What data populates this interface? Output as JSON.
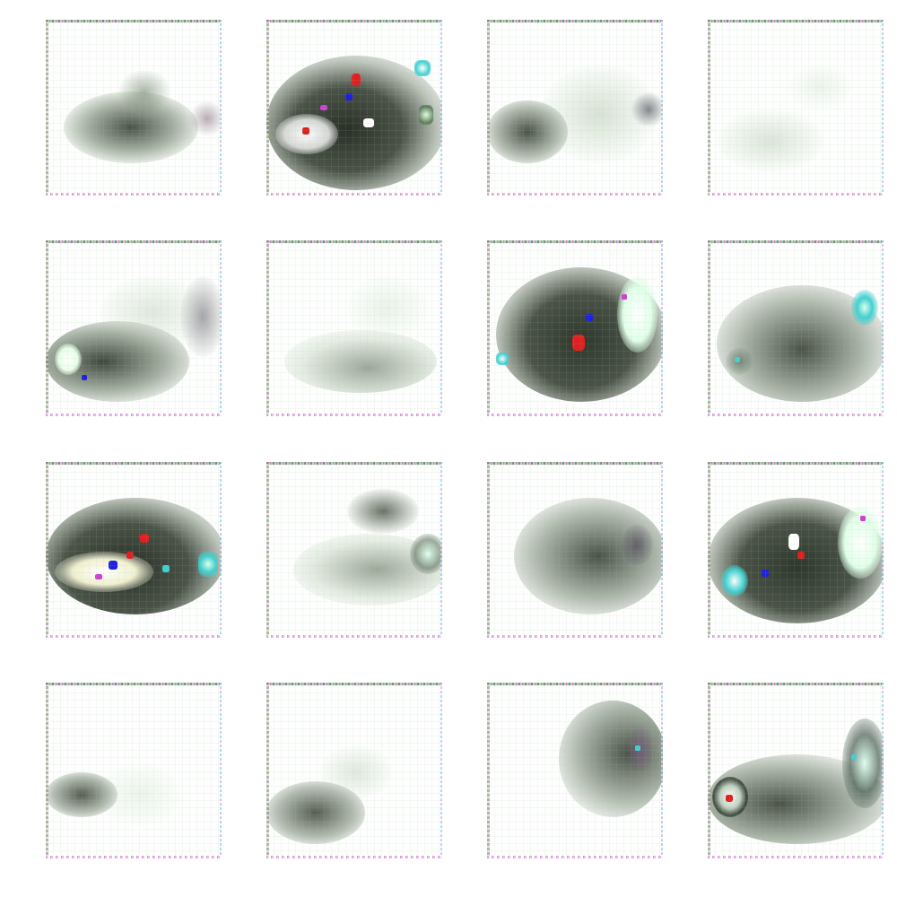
{
  "image": {
    "description_kind": "generated-sample-grid",
    "rows": 4,
    "columns": 4,
    "background_color": "#ffffff",
    "tiles": [
      {
        "id": "r1c1",
        "intensity": "medium"
      },
      {
        "id": "r1c2",
        "intensity": "high"
      },
      {
        "id": "r1c3",
        "intensity": "low"
      },
      {
        "id": "r1c4",
        "intensity": "faint"
      },
      {
        "id": "r2c1",
        "intensity": "medium"
      },
      {
        "id": "r2c2",
        "intensity": "faint"
      },
      {
        "id": "r2c3",
        "intensity": "high"
      },
      {
        "id": "r2c4",
        "intensity": "medium"
      },
      {
        "id": "r3c1",
        "intensity": "high"
      },
      {
        "id": "r3c2",
        "intensity": "low"
      },
      {
        "id": "r3c3",
        "intensity": "medium"
      },
      {
        "id": "r3c4",
        "intensity": "high"
      },
      {
        "id": "r4c1",
        "intensity": "faint"
      },
      {
        "id": "r4c2",
        "intensity": "low"
      },
      {
        "id": "r4c3",
        "intensity": "medium"
      },
      {
        "id": "r4c4",
        "intensity": "medium"
      }
    ],
    "colors": {
      "dark_blob": "#2b3528",
      "mid_blob": "#5c6e58",
      "light_blob": "#a9c0a3",
      "noise_magenta": "#d040d0",
      "noise_cyan": "#40d0d0",
      "noise_red": "#e02020",
      "noise_blue": "#2020e0",
      "noise_white": "#ffffff"
    }
  }
}
